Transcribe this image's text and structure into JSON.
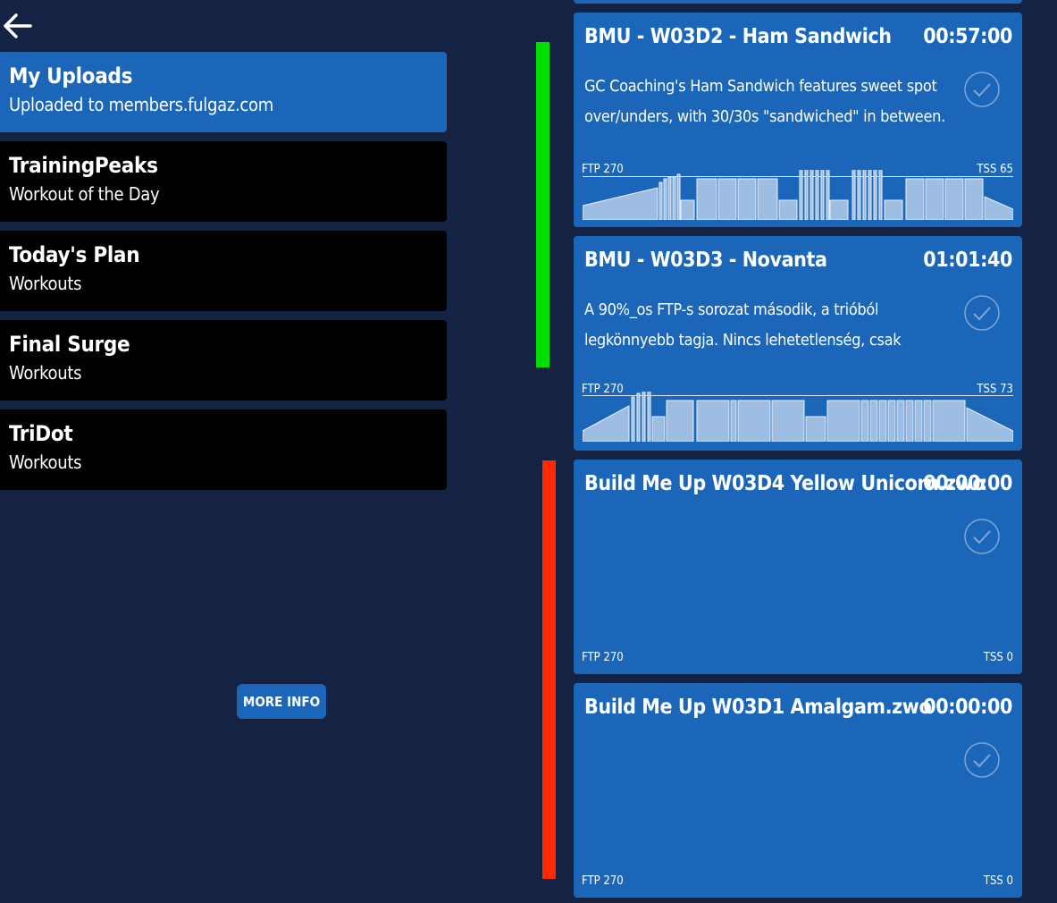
{
  "nav": {
    "back_icon": "arrow-left-icon"
  },
  "sources": [
    {
      "title": "My Uploads",
      "subtitle": "Uploaded to members.fulgaz.com",
      "active": true
    },
    {
      "title": "TrainingPeaks",
      "subtitle": "Workout of the Day",
      "active": false
    },
    {
      "title": "Today's Plan",
      "subtitle": "Workouts",
      "active": false
    },
    {
      "title": "Final Surge",
      "subtitle": "Workouts",
      "active": false
    },
    {
      "title": "TriDot",
      "subtitle": "Workouts",
      "active": false
    }
  ],
  "more_info_label": "MORE INFO",
  "colors": {
    "background": "#142244",
    "accent": "#1b66b8",
    "inactive": "#000000",
    "green_bar": "#00e000",
    "red_bar": "#ff2a00"
  },
  "workouts": [
    {
      "name": "BMU - W03D2 - Ham Sandwich",
      "duration": "00:57:00",
      "description": "GC Coaching's Ham Sandwich features sweet spot over/unders, with 30/30s \"sandwiched\" in between.",
      "ftp_label": "FTP 270",
      "tss_label": "TSS 65"
    },
    {
      "name": "BMU - W03D3 - Novanta",
      "duration": "01:01:40",
      "description": "A 90%_os FTP-s sorozat második, a trióból legkönnyebb tagja. Nincs lehetetlenség, csak",
      "ftp_label": "FTP 270",
      "tss_label": "TSS 73"
    },
    {
      "name": "Build Me Up  W03D4  Yellow Unicorn.zwo",
      "duration": "00:00:00",
      "description": "",
      "ftp_label": "FTP 270",
      "tss_label": "TSS 0"
    },
    {
      "name": "Build Me Up W03D1  Amalgam.zwo",
      "duration": "00:00:00",
      "description": "",
      "ftp_label": "FTP 270",
      "tss_label": "TSS 0"
    }
  ]
}
